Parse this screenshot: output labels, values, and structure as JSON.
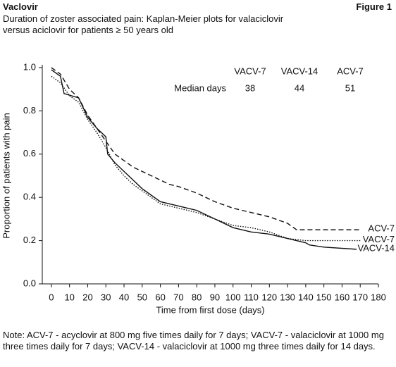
{
  "chart_data": {
    "type": "line",
    "header_left": "Vaclovir",
    "header_right": "Figure 1",
    "title": "Duration of zoster associated pain: Kaplan-Meier plots for valaciclovir versus aciclovir for patients ≥ 50 years old",
    "xlabel": "Time from first dose (days)",
    "ylabel": "Proportion of patients with pain",
    "note": "Note: ACV-7 - acyclovir at 800 mg five times daily for 7 days; VACV-7 - valaciclovir at 1000 mg three times daily for 7 days; VACV-14 - valaciclovir at 1000 mg three times daily for 14 days.",
    "xlim": [
      -5,
      180
    ],
    "ylim": [
      0,
      1
    ],
    "xticks": [
      0,
      10,
      20,
      30,
      40,
      50,
      60,
      70,
      80,
      90,
      100,
      110,
      120,
      130,
      140,
      150,
      160,
      170,
      180
    ],
    "yticks": [
      {
        "value": 0,
        "label": "0.0"
      },
      0.2,
      0.4,
      0.6,
      0.8,
      {
        "value": 1,
        "label": "1.0"
      }
    ],
    "table": {
      "columns": [
        "VACV-7",
        "VACV-14",
        "ACV-7"
      ],
      "row_label": "Median days",
      "values": [
        38,
        44,
        51
      ]
    },
    "series": [
      {
        "name": "ACV-7",
        "color": "#111111",
        "dash": "7,4",
        "x": [
          0,
          5,
          10,
          15,
          20,
          25,
          30,
          35,
          40,
          45,
          50,
          55,
          60,
          65,
          70,
          80,
          90,
          100,
          110,
          120,
          130,
          135,
          140,
          150,
          170
        ],
        "values": [
          1.0,
          0.97,
          0.9,
          0.86,
          0.78,
          0.72,
          0.66,
          0.6,
          0.57,
          0.54,
          0.52,
          0.5,
          0.48,
          0.46,
          0.45,
          0.42,
          0.38,
          0.35,
          0.33,
          0.31,
          0.28,
          0.25,
          0.25,
          0.25,
          0.25
        ]
      },
      {
        "name": "VACV-7",
        "color": "#111111",
        "dash": "1.5,2",
        "x": [
          0,
          5,
          10,
          15,
          20,
          25,
          30,
          35,
          40,
          45,
          50,
          55,
          60,
          70,
          80,
          90,
          100,
          110,
          120,
          130,
          140,
          150,
          170
        ],
        "values": [
          0.96,
          0.93,
          0.87,
          0.84,
          0.76,
          0.7,
          0.63,
          0.55,
          0.5,
          0.46,
          0.43,
          0.4,
          0.37,
          0.35,
          0.33,
          0.3,
          0.27,
          0.26,
          0.24,
          0.21,
          0.2,
          0.2,
          0.2
        ]
      },
      {
        "name": "VACV-14",
        "color": "#111111",
        "dash": "none",
        "x": [
          0,
          5,
          7,
          15,
          20,
          25,
          30,
          31,
          35,
          40,
          45,
          50,
          55,
          60,
          70,
          80,
          90,
          100,
          110,
          120,
          130,
          140,
          142,
          150,
          168
        ],
        "values": [
          0.99,
          0.96,
          0.88,
          0.86,
          0.77,
          0.72,
          0.68,
          0.6,
          0.56,
          0.52,
          0.48,
          0.44,
          0.41,
          0.38,
          0.36,
          0.34,
          0.3,
          0.26,
          0.24,
          0.23,
          0.21,
          0.19,
          0.18,
          0.17,
          0.16
        ]
      }
    ]
  }
}
